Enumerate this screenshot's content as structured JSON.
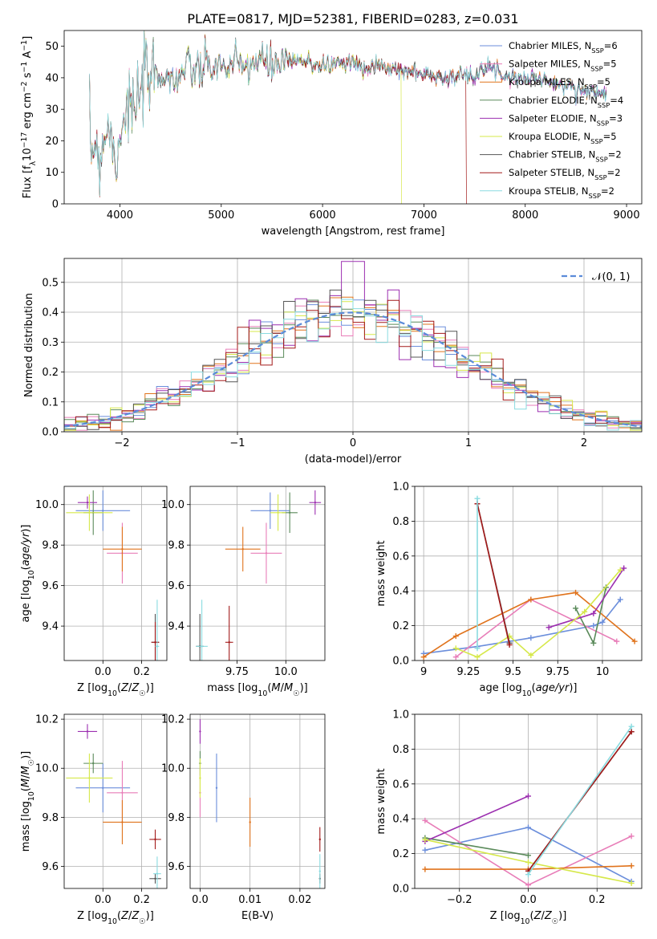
{
  "title": "PLATE=0817, MJD=52381, FIBERID=0283, z=0.031",
  "colors": {
    "Chabrier MILES": "#6b8edb",
    "Salpeter MILES": "#e87db8",
    "Kroupa MILES": "#e0731c",
    "Chabrier ELODIE": "#5a8a5a",
    "Salpeter ELODIE": "#9c2fb0",
    "Kroupa ELODIE": "#d6e84a",
    "Chabrier STELIB": "#555555",
    "Salpeter STELIB": "#a31a1a",
    "Kroupa STELIB": "#8adbe0"
  },
  "chart_data": [
    {
      "type": "line",
      "id": "spectrum",
      "xlabel": "wavelength [Angstrom, rest frame]",
      "ylabel": "Flux [f_λ10^-17 erg cm^-2 s^-1 A^-1]",
      "xlim": [
        3450,
        9150
      ],
      "ylim": [
        0,
        55
      ],
      "xticks": [
        4000,
        5000,
        6000,
        7000,
        8000,
        9000
      ],
      "yticks": [
        0,
        10,
        20,
        30,
        40,
        50
      ],
      "legend_position": "top-right",
      "series": [
        {
          "name": "Chabrier MILES",
          "nssp": "6"
        },
        {
          "name": "Salpeter MILES",
          "nssp": "5"
        },
        {
          "name": "Kroupa MILES",
          "nssp": "5"
        },
        {
          "name": "Chabrier ELODIE",
          "nssp": "4"
        },
        {
          "name": "Salpeter ELODIE",
          "nssp": "3"
        },
        {
          "name": "Kroupa ELODIE",
          "nssp": "5"
        },
        {
          "name": "Chabrier STELIB",
          "nssp": "2"
        },
        {
          "name": "Salpeter STELIB",
          "nssp": "2"
        },
        {
          "name": "Kroupa STELIB",
          "nssp": "2"
        }
      ],
      "shape": {
        "x": [
          3700,
          3750,
          3800,
          3850,
          3900,
          3950,
          4000,
          4050,
          4100,
          4150,
          4200,
          4300,
          4400,
          4500,
          4600,
          4700,
          4800,
          4900,
          5000,
          5100,
          5200,
          5300,
          5400,
          5500,
          5600,
          5800,
          6000,
          6200,
          6400,
          6500,
          6600,
          6700,
          6800,
          6900,
          7000,
          7100,
          7200,
          7300,
          7400,
          7500,
          7600,
          7700,
          7800,
          7900,
          8000,
          8100,
          8200,
          8300,
          8400,
          8500,
          8600,
          8700,
          8800
        ],
        "y": [
          17,
          20,
          15,
          23,
          25,
          12,
          23,
          30,
          32,
          27,
          36,
          40,
          42,
          39,
          41,
          43,
          42,
          44,
          43,
          44,
          43,
          45,
          45,
          44,
          45,
          45,
          44,
          45,
          44,
          44,
          43,
          43,
          42,
          42,
          41,
          41,
          40,
          40,
          41,
          40,
          45,
          42,
          41,
          40,
          40,
          40,
          39,
          38,
          37,
          37,
          36,
          35,
          35
        ],
        "end_wavelength": {
          "Salpeter STELIB": 7420,
          "Kroupa ELODIE": 6780
        }
      }
    },
    {
      "type": "histogram",
      "id": "residuals",
      "xlabel": "(data-model)/error",
      "ylabel": "Normed distribution",
      "xlim": [
        -2.5,
        2.5
      ],
      "ylim": [
        0,
        0.58
      ],
      "xticks": [
        -2,
        -1,
        0,
        1,
        2
      ],
      "yticks": [
        0.0,
        0.1,
        0.2,
        0.3,
        0.4,
        0.5
      ],
      "grid": true,
      "bin_width": 0.1,
      "reference_curve": {
        "name": "N(0,1)",
        "label_text": "𝒩(0, 1)",
        "style": "dashed"
      },
      "legend_position": "top-right"
    },
    {
      "type": "scatter",
      "id": "age-vs-Z",
      "xlabel": "Z [log10(Z/Z☉)]",
      "ylabel": "age [log10(age/yr)]",
      "xlim": [
        -0.2,
        0.33
      ],
      "ylim": [
        9.23,
        10.09
      ],
      "xticks": [
        0.0,
        0.2
      ],
      "yticks": [
        9.4,
        9.6,
        9.8,
        10.0
      ],
      "grid": true,
      "points": [
        {
          "series": "Chabrier MILES",
          "x": 0.0,
          "y": 9.97,
          "xerr": 0.14,
          "yerr": 0.1
        },
        {
          "series": "Salpeter MILES",
          "x": 0.1,
          "y": 9.76,
          "xerr": 0.08,
          "yerr": 0.15
        },
        {
          "series": "Kroupa MILES",
          "x": 0.1,
          "y": 9.78,
          "xerr": 0.1,
          "yerr": 0.11
        },
        {
          "series": "Chabrier ELODIE",
          "x": -0.05,
          "y": 9.96,
          "xerr": 0.05,
          "yerr": 0.11
        },
        {
          "series": "Salpeter ELODIE",
          "x": -0.08,
          "y": 10.01,
          "xerr": 0.05,
          "yerr": 0.03
        },
        {
          "series": "Kroupa ELODIE",
          "x": -0.07,
          "y": 9.96,
          "xerr": 0.12,
          "yerr": 0.09
        },
        {
          "series": "Chabrier STELIB",
          "x": 0.27,
          "y": 9.32,
          "xerr": 0.02,
          "yerr": 0.14
        },
        {
          "series": "Salpeter STELIB",
          "x": 0.27,
          "y": 9.32,
          "xerr": 0.02,
          "yerr": 0.1
        },
        {
          "series": "Kroupa STELIB",
          "x": 0.28,
          "y": 9.3,
          "xerr": 0.01,
          "yerr": 0.23
        }
      ]
    },
    {
      "type": "scatter",
      "id": "age-vs-mass",
      "xlabel": "mass [log10(M/M☉)]",
      "ylabel": "",
      "xlim": [
        9.51,
        10.2
      ],
      "ylim": [
        9.23,
        10.09
      ],
      "xticks": [
        9.75,
        10.0
      ],
      "yticks": [
        9.4,
        9.6,
        9.8,
        10.0
      ],
      "grid": true,
      "points": [
        {
          "series": "Chabrier MILES",
          "x": 9.92,
          "y": 9.97,
          "xerr": 0.1,
          "yerr": 0.09
        },
        {
          "series": "Salpeter MILES",
          "x": 9.9,
          "y": 9.76,
          "xerr": 0.08,
          "yerr": 0.15
        },
        {
          "series": "Kroupa MILES",
          "x": 9.78,
          "y": 9.78,
          "xerr": 0.09,
          "yerr": 0.11
        },
        {
          "series": "Chabrier ELODIE",
          "x": 10.02,
          "y": 9.96,
          "xerr": 0.04,
          "yerr": 0.1
        },
        {
          "series": "Salpeter ELODIE",
          "x": 10.15,
          "y": 10.01,
          "xerr": 0.03,
          "yerr": 0.06
        },
        {
          "series": "Kroupa ELODIE",
          "x": 9.96,
          "y": 9.96,
          "xerr": 0.04,
          "yerr": 0.09
        },
        {
          "series": "Chabrier STELIB",
          "x": 9.56,
          "y": 9.3,
          "xerr": 0.02,
          "yerr": 0.16
        },
        {
          "series": "Salpeter STELIB",
          "x": 9.71,
          "y": 9.32,
          "xerr": 0.02,
          "yerr": 0.18
        },
        {
          "series": "Kroupa STELIB",
          "x": 9.57,
          "y": 9.3,
          "xerr": 0.03,
          "yerr": 0.23
        }
      ]
    },
    {
      "type": "line",
      "id": "weight-vs-age",
      "xlabel": "age [log10(age/yr)]",
      "ylabel": "mass weight",
      "xlim": [
        8.95,
        10.22
      ],
      "ylim": [
        0,
        1.0
      ],
      "xticks": [
        9.0,
        9.25,
        9.5,
        9.75,
        10.0
      ],
      "yticks": [
        0.0,
        0.2,
        0.4,
        0.6,
        0.8,
        1.0
      ],
      "grid": true,
      "series": [
        {
          "name": "Chabrier MILES",
          "x": [
            9.0,
            9.3,
            9.6,
            9.95,
            10.0,
            10.1
          ],
          "y": [
            0.04,
            0.08,
            0.13,
            0.2,
            0.22,
            0.35
          ]
        },
        {
          "name": "Salpeter MILES",
          "x": [
            9.18,
            9.6,
            10.08
          ],
          "y": [
            0.02,
            0.35,
            0.11
          ]
        },
        {
          "name": "Kroupa MILES",
          "x": [
            9.0,
            9.18,
            9.6,
            9.85,
            10.18
          ],
          "y": [
            0.02,
            0.14,
            0.35,
            0.39,
            0.11
          ]
        },
        {
          "name": "Chabrier ELODIE",
          "x": [
            9.85,
            9.95,
            10.02
          ],
          "y": [
            0.3,
            0.1,
            0.42
          ]
        },
        {
          "name": "Salpeter ELODIE",
          "x": [
            9.7,
            9.95,
            10.12
          ],
          "y": [
            0.19,
            0.27,
            0.53
          ]
        },
        {
          "name": "Kroupa ELODIE",
          "x": [
            9.18,
            9.3,
            9.48,
            9.6,
            9.9,
            10.1
          ],
          "y": [
            0.07,
            0.02,
            0.14,
            0.03,
            0.28,
            0.52
          ]
        },
        {
          "name": "Chabrier STELIB",
          "x": [
            9.3,
            9.48
          ],
          "y": [
            0.9,
            0.1
          ]
        },
        {
          "name": "Salpeter STELIB",
          "x": [
            9.3,
            9.48
          ],
          "y": [
            0.9,
            0.09
          ]
        },
        {
          "name": "Kroupa STELIB",
          "x": [
            9.3,
            9.3
          ],
          "y": [
            0.07,
            0.93
          ]
        }
      ]
    },
    {
      "type": "scatter",
      "id": "mass-vs-Z",
      "xlabel": "Z [log10(Z/Z☉)]",
      "ylabel": "mass [log10(M/M☉)]",
      "xlim": [
        -0.2,
        0.33
      ],
      "ylim": [
        9.51,
        10.22
      ],
      "xticks": [
        0.0,
        0.2
      ],
      "yticks": [
        9.6,
        9.8,
        10.0,
        10.2
      ],
      "grid": true,
      "points": [
        {
          "series": "Chabrier MILES",
          "x": 0.0,
          "y": 9.92,
          "xerr": 0.14,
          "yerr": 0.1
        },
        {
          "series": "Salpeter MILES",
          "x": 0.1,
          "y": 9.9,
          "xerr": 0.08,
          "yerr": 0.13
        },
        {
          "series": "Kroupa MILES",
          "x": 0.1,
          "y": 9.78,
          "xerr": 0.1,
          "yerr": 0.09
        },
        {
          "series": "Chabrier ELODIE",
          "x": -0.05,
          "y": 10.02,
          "xerr": 0.05,
          "yerr": 0.04
        },
        {
          "series": "Salpeter ELODIE",
          "x": -0.08,
          "y": 10.15,
          "xerr": 0.05,
          "yerr": 0.03
        },
        {
          "series": "Kroupa ELODIE",
          "x": -0.07,
          "y": 9.96,
          "xerr": 0.12,
          "yerr": 0.1
        },
        {
          "series": "Chabrier STELIB",
          "x": 0.27,
          "y": 9.55,
          "xerr": 0.03,
          "yerr": 0.02
        },
        {
          "series": "Salpeter STELIB",
          "x": 0.27,
          "y": 9.71,
          "xerr": 0.03,
          "yerr": 0.04
        },
        {
          "series": "Kroupa STELIB",
          "x": 0.28,
          "y": 9.57,
          "xerr": 0.02,
          "yerr": 0.07
        }
      ]
    },
    {
      "type": "scatter",
      "id": "mass-vs-EBV",
      "xlabel": "E(B-V)",
      "ylabel": "",
      "xlim": [
        -0.002,
        0.025
      ],
      "ylim": [
        9.51,
        10.22
      ],
      "xticks": [
        0.0,
        0.01,
        0.02
      ],
      "yticks": [
        9.6,
        9.8,
        10.0,
        10.2
      ],
      "grid": true,
      "points": [
        {
          "series": "Chabrier MILES",
          "x": 0.0033,
          "y": 9.92,
          "yerr": 0.14
        },
        {
          "series": "Salpeter MILES",
          "x": 0.0,
          "y": 9.9,
          "yerr": 0.1
        },
        {
          "series": "Kroupa MILES",
          "x": 0.01,
          "y": 9.78,
          "yerr": 0.1
        },
        {
          "series": "Chabrier ELODIE",
          "x": 0.0,
          "y": 10.02,
          "yerr": 0.05
        },
        {
          "series": "Salpeter ELODIE",
          "x": 0.0,
          "y": 10.15,
          "yerr": 0.05
        },
        {
          "series": "Kroupa ELODIE",
          "x": 0.0,
          "y": 9.96,
          "yerr": 0.08
        },
        {
          "series": "Chabrier STELIB",
          "x": 0.024,
          "y": 9.55,
          "yerr": 0.02
        },
        {
          "series": "Salpeter STELIB",
          "x": 0.024,
          "y": 9.71,
          "yerr": 0.05
        },
        {
          "series": "Kroupa STELIB",
          "x": 0.024,
          "y": 9.58,
          "yerr": 0.07
        }
      ]
    },
    {
      "type": "line",
      "id": "weight-vs-Z",
      "xlabel": "Z [log10(Z/Z☉)]",
      "ylabel": "mass weight",
      "xlim": [
        -0.33,
        0.33
      ],
      "ylim": [
        0,
        1.0
      ],
      "xticks": [
        -0.2,
        0.0,
        0.2
      ],
      "yticks": [
        0.0,
        0.2,
        0.4,
        0.6,
        0.8,
        1.0
      ],
      "grid": true,
      "series": [
        {
          "name": "Chabrier MILES",
          "x": [
            -0.3,
            0.0,
            0.3
          ],
          "y": [
            0.22,
            0.35,
            0.04
          ]
        },
        {
          "name": "Salpeter MILES",
          "x": [
            -0.3,
            0.0,
            0.3
          ],
          "y": [
            0.39,
            0.02,
            0.3
          ]
        },
        {
          "name": "Kroupa MILES",
          "x": [
            -0.3,
            0.0,
            0.3
          ],
          "y": [
            0.11,
            0.11,
            0.13
          ]
        },
        {
          "name": "Chabrier ELODIE",
          "x": [
            -0.3,
            0.0
          ],
          "y": [
            0.29,
            0.19
          ]
        },
        {
          "name": "Salpeter ELODIE",
          "x": [
            -0.3,
            0.0
          ],
          "y": [
            0.27,
            0.53
          ]
        },
        {
          "name": "Kroupa ELODIE",
          "x": [
            -0.3,
            0.0,
            0.3
          ],
          "y": [
            0.28,
            0.15,
            0.03
          ]
        },
        {
          "name": "Chabrier STELIB",
          "x": [
            0.0,
            0.3
          ],
          "y": [
            0.1,
            0.9
          ]
        },
        {
          "name": "Salpeter STELIB",
          "x": [
            0.0,
            0.3
          ],
          "y": [
            0.1,
            0.9
          ]
        },
        {
          "name": "Kroupa STELIB",
          "x": [
            0.0,
            0.3
          ],
          "y": [
            0.08,
            0.93
          ]
        }
      ]
    }
  ]
}
